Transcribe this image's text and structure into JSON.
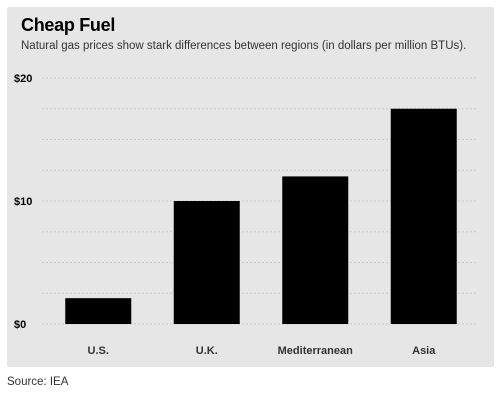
{
  "header": {
    "title": "Cheap Fuel",
    "subtitle": "Natural gas prices show stark differences between regions (in dollars per million BTUs)."
  },
  "footer": {
    "source": "Source: IEA"
  },
  "colors": {
    "panel_background": "#e6e6e6",
    "bar": "#000000",
    "gridline": "#c8c8c8"
  },
  "chart_data": {
    "type": "bar",
    "title": "Cheap Fuel",
    "subtitle": "Natural gas prices show stark differences between regions (in dollars per million BTUs).",
    "categories": [
      "U.S.",
      "U.K.",
      "Mediterranean",
      "Asia"
    ],
    "values": [
      2.1,
      10.0,
      12.0,
      17.5
    ],
    "yticks": [
      {
        "value": 0,
        "label": "$0"
      },
      {
        "value": 10,
        "label": "$10"
      },
      {
        "value": 20,
        "label": "$20"
      }
    ],
    "ylim": [
      0,
      20
    ],
    "grid": true,
    "legend": "none"
  }
}
